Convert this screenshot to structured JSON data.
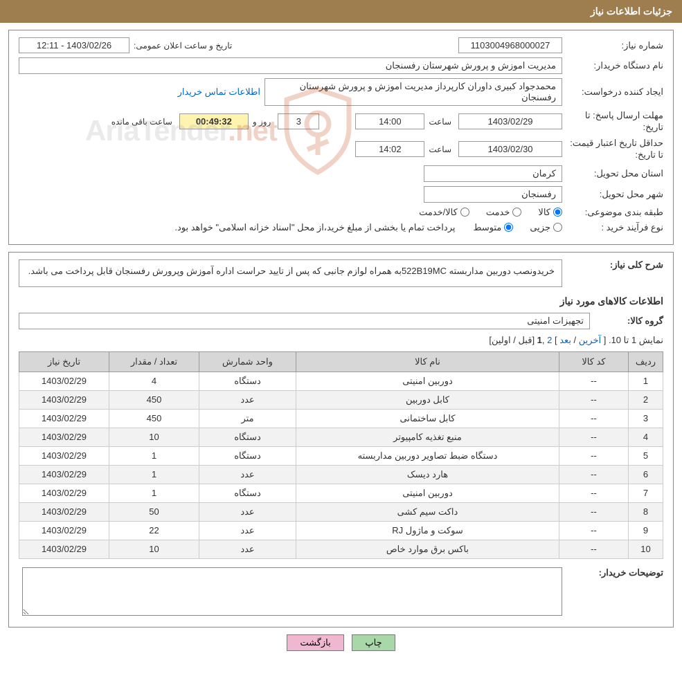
{
  "header": {
    "title": "جزئیات اطلاعات نیاز"
  },
  "form": {
    "need_number_label": "شماره نیاز:",
    "need_number": "1103004968000027",
    "announce_label": "تاریخ و ساعت اعلان عمومی:",
    "announce_value": "1403/02/26 - 12:11",
    "buyer_org_label": "نام دستگاه خریدار:",
    "buyer_org": "مدیریت اموزش و پرورش شهرستان رفسنجان",
    "requester_label": "ایجاد کننده درخواست:",
    "requester": "محمدجواد کبیری داوران کارپرداز مدیریت اموزش و پرورش شهرستان رفسنجان",
    "contact_link": "اطلاعات تماس خریدار",
    "deadline_label": "مهلت ارسال پاسخ: تا تاریخ:",
    "deadline_date": "1403/02/29",
    "hour_label": "ساعت",
    "deadline_hour": "14:00",
    "days_and_label": "روز و",
    "days_value": "3",
    "remain_time": "00:49:32",
    "remain_suffix": "ساعت باقی مانده",
    "validity_label": "حداقل تاریخ اعتبار قیمت: تا تاریخ:",
    "validity_date": "1403/02/30",
    "validity_hour": "14:02",
    "province_label": "استان محل تحویل:",
    "province": "کرمان",
    "city_label": "شهر محل تحویل:",
    "city": "رفسنجان",
    "category_label": "طبقه بندی موضوعی:",
    "cat_goods": "کالا",
    "cat_service": "خدمت",
    "cat_both": "کالا/خدمت",
    "process_label": "نوع فرآیند خرید :",
    "proc_partial": "جزیی",
    "proc_medium": "متوسط",
    "process_note": "پرداخت تمام یا بخشی از مبلغ خرید،از محل \"اسناد خزانه اسلامی\" خواهد بود."
  },
  "need": {
    "summary_label": "شرح كلی نیاز:",
    "summary": "خریدونصب دوربین مداربسته 522B19MCبه همراه لوازم جانبی که پس از تایید حراست اداره آموزش وپرورش رفسنجان قابل پرداخت می باشد.",
    "items_title": "اطلاعات کالاهای مورد نیاز",
    "group_label": "گروه کالا:",
    "group": "تجهیزات امنیتی",
    "pagination_text": "نمایش 1 تا 10. [ ",
    "pag_last": "آخرین",
    "pag_sep": " / ",
    "pag_next": "بعد",
    "pag_close": " ] ",
    "pag_2": "2",
    "pag_comma": " ,",
    "pag_1": "1",
    "pag_prev": " [قبل / اولین]"
  },
  "table": {
    "headers": {
      "row": "ردیف",
      "code": "کد کالا",
      "name": "نام کالا",
      "unit": "واحد شمارش",
      "qty": "تعداد / مقدار",
      "date": "تاریخ نیاز"
    },
    "rows": [
      {
        "r": "1",
        "code": "--",
        "name": "دوربین امنیتی",
        "unit": "دستگاه",
        "qty": "4",
        "date": "1403/02/29"
      },
      {
        "r": "2",
        "code": "--",
        "name": "کابل دوربین",
        "unit": "عدد",
        "qty": "450",
        "date": "1403/02/29"
      },
      {
        "r": "3",
        "code": "--",
        "name": "کابل ساختمانی",
        "unit": "متر",
        "qty": "450",
        "date": "1403/02/29"
      },
      {
        "r": "4",
        "code": "--",
        "name": "منبع تغذیه کامپیوتر",
        "unit": "دستگاه",
        "qty": "10",
        "date": "1403/02/29"
      },
      {
        "r": "5",
        "code": "--",
        "name": "دستگاه ضبط تصاویر دوربین مداربسته",
        "unit": "دستگاه",
        "qty": "1",
        "date": "1403/02/29"
      },
      {
        "r": "6",
        "code": "--",
        "name": "هارد دیسک",
        "unit": "عدد",
        "qty": "1",
        "date": "1403/02/29"
      },
      {
        "r": "7",
        "code": "--",
        "name": "دوربین امنیتی",
        "unit": "دستگاه",
        "qty": "1",
        "date": "1403/02/29"
      },
      {
        "r": "8",
        "code": "--",
        "name": "داکت سیم کشی",
        "unit": "عدد",
        "qty": "50",
        "date": "1403/02/29"
      },
      {
        "r": "9",
        "code": "--",
        "name": "سوکت و ماژول RJ",
        "unit": "عدد",
        "qty": "22",
        "date": "1403/02/29"
      },
      {
        "r": "10",
        "code": "--",
        "name": "باکس برق موارد خاص",
        "unit": "عدد",
        "qty": "10",
        "date": "1403/02/29"
      }
    ]
  },
  "notes": {
    "label": "توضیحات خریدار:"
  },
  "buttons": {
    "print": "چاپ",
    "back": "بازگشت"
  },
  "watermark": {
    "text1": "AriaTender",
    "text2": ".net"
  },
  "colors": {
    "header_bg": "#9e7e4f",
    "time_bg": "#fff3b0",
    "link": "#0066cc",
    "th_bg": "#d7d7d7",
    "btn_green": "#a8d8a8",
    "btn_pink": "#f0b8d0",
    "wm_accent": "#c85020"
  }
}
